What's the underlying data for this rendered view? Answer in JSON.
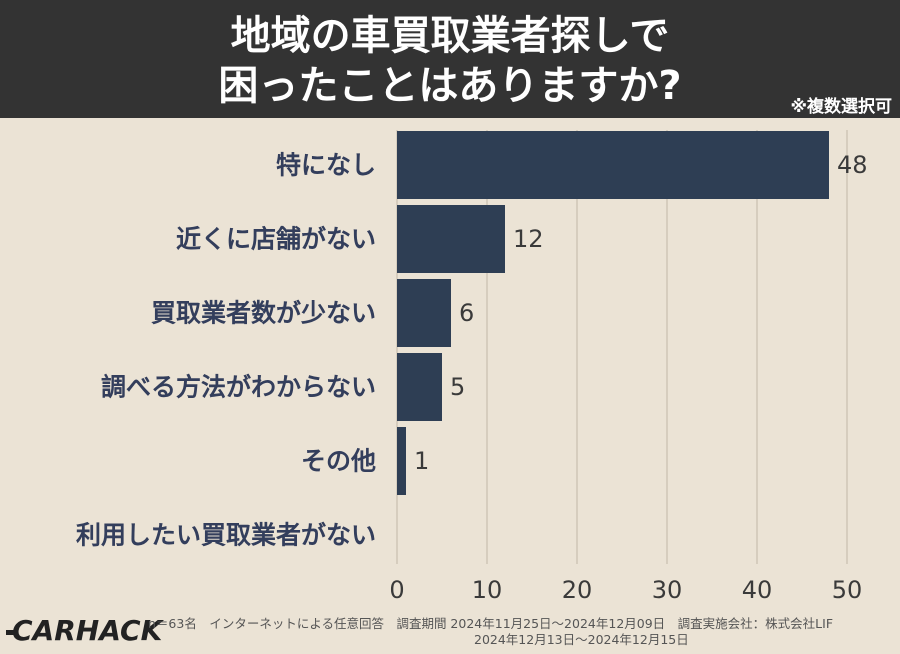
{
  "header": {
    "title_line1": "地域の車買取業者探しで",
    "title_line2": "困ったことはありますか?",
    "note": "※複数選択可"
  },
  "chart_data": {
    "type": "bar",
    "orientation": "horizontal",
    "categories": [
      "特になし",
      "近くに店舗がない",
      "買取業者数が少ない",
      "調べる方法がわからない",
      "その他",
      "利用したい買取業者がない"
    ],
    "values": [
      48,
      12,
      6,
      5,
      1,
      0
    ],
    "value_labels": [
      "48",
      "12",
      "6",
      "5",
      "1",
      ""
    ],
    "xlim": [
      0,
      50
    ],
    "xticks": [
      0,
      10,
      20,
      30,
      40,
      50
    ],
    "grid": true,
    "bar_color": "#2e3e54",
    "grid_color": "#cfc6b6",
    "title": "",
    "xlabel": "",
    "ylabel": ""
  },
  "footer": {
    "logo": "CARHACK",
    "line1": "n＝63名　インターネットによる任意回答　調査期間 2024年11月25日〜2024年12月09日　調査実施会社：株式会社LIF",
    "line2": "2024年12月13日〜2024年12月15日"
  }
}
